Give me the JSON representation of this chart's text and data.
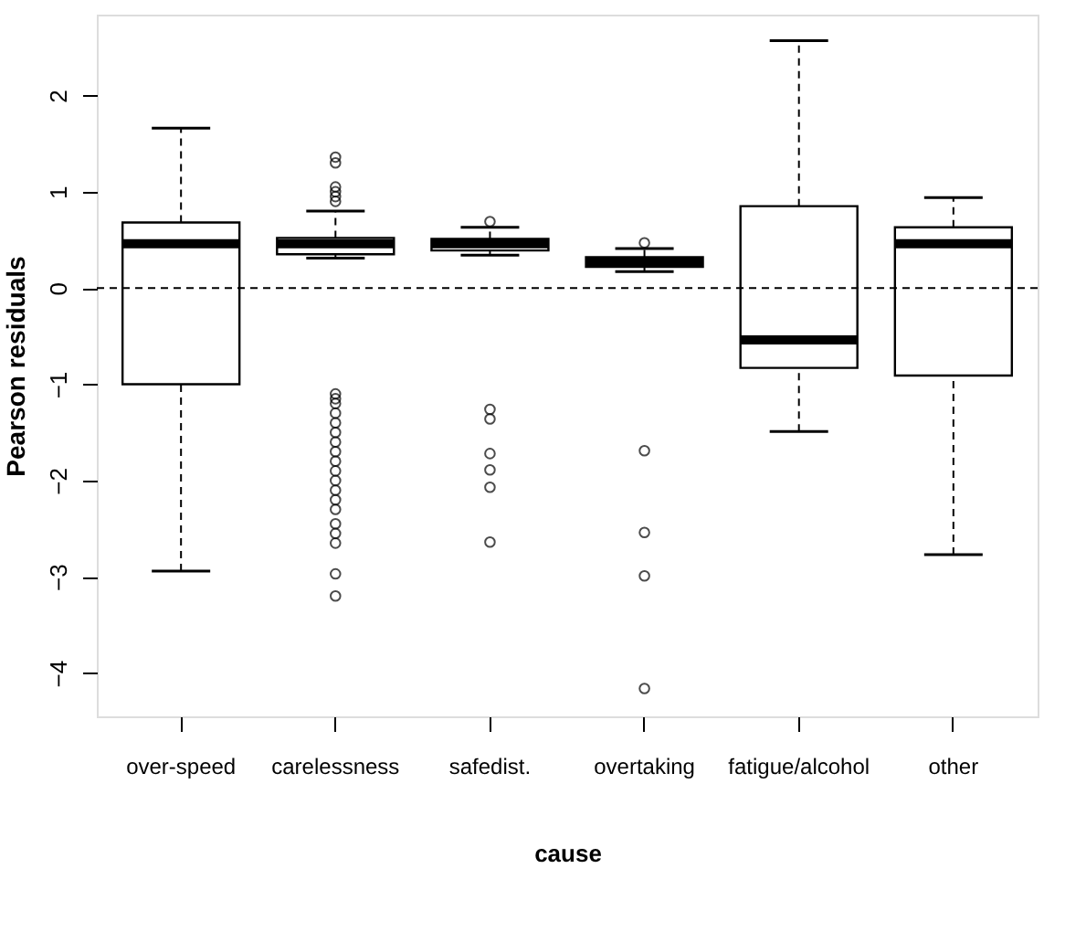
{
  "chart_data": {
    "type": "box",
    "xlabel": "cause",
    "ylabel": "Pearson residuals",
    "categories": [
      "over-speed",
      "carelessness",
      "safedist.",
      "overtaking",
      "fatigue/alcohol",
      "other"
    ],
    "boxes": [
      {
        "low": -2.94,
        "q1": -1.0,
        "median": 0.46,
        "q3": 0.68,
        "high": 1.66
      },
      {
        "low": 0.31,
        "q1": 0.35,
        "median": 0.46,
        "q3": 0.52,
        "high": 0.8,
        "outliers": [
          1.36,
          1.3,
          1.05,
          1.0,
          0.95,
          0.9,
          -1.1,
          -1.15,
          -1.2,
          -1.3,
          -1.4,
          -1.5,
          -1.6,
          -1.7,
          -1.8,
          -1.9,
          -2.0,
          -2.1,
          -2.2,
          -2.3,
          -2.45,
          -2.55,
          -2.65,
          -2.97,
          -3.2
        ]
      },
      {
        "low": 0.34,
        "q1": 0.39,
        "median": 0.46,
        "q3": 0.51,
        "high": 0.63,
        "outliers": [
          0.69,
          -1.26,
          -1.36,
          -1.72,
          -1.89,
          -2.07,
          -2.64
        ]
      },
      {
        "low": 0.17,
        "q1": 0.22,
        "median": 0.27,
        "q3": 0.32,
        "high": 0.41,
        "outliers": [
          0.47,
          -1.69,
          -2.54,
          -2.99,
          -4.16
        ]
      },
      {
        "low": -1.49,
        "q1": -0.83,
        "median": -0.54,
        "q3": 0.85,
        "high": 2.57
      },
      {
        "low": -2.77,
        "q1": -0.91,
        "median": 0.46,
        "q3": 0.63,
        "high": 0.94
      }
    ],
    "ylim": [
      -4.45,
      2.84
    ],
    "yticks": [
      -4,
      -3,
      -2,
      -1,
      0,
      1,
      2
    ],
    "ref_lines": [
      {
        "axis": "y",
        "value": 0,
        "line_style": "dashed"
      }
    ]
  }
}
